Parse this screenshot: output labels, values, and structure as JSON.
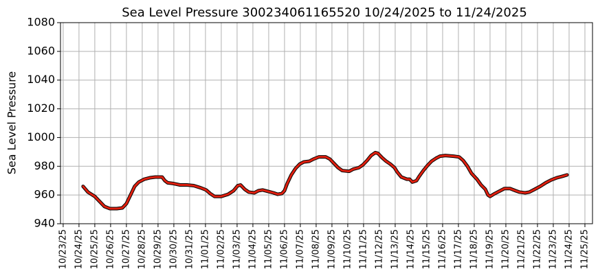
{
  "chart_data": {
    "type": "line",
    "title": "Sea Level Pressure 300234061165520  10/24/2025 to 11/24/2025",
    "y_label": "Sea Level Pressure",
    "xlim": [
      -0.17,
      33.48
    ],
    "ylim": [
      940,
      1080
    ],
    "yticks": [
      940,
      960,
      980,
      1000,
      1020,
      1040,
      1060,
      1080
    ],
    "xticks": [
      {
        "value": 0,
        "label": "10/23/25"
      },
      {
        "value": 1,
        "label": "10/24/25"
      },
      {
        "value": 2,
        "label": "10/25/25"
      },
      {
        "value": 3,
        "label": "10/26/25"
      },
      {
        "value": 4,
        "label": "10/27/25"
      },
      {
        "value": 5,
        "label": "10/28/25"
      },
      {
        "value": 6,
        "label": "10/29/25"
      },
      {
        "value": 7,
        "label": "10/30/25"
      },
      {
        "value": 8,
        "label": "10/31/25"
      },
      {
        "value": 9,
        "label": "11/01/25"
      },
      {
        "value": 10,
        "label": "11/02/25"
      },
      {
        "value": 11,
        "label": "11/03/25"
      },
      {
        "value": 12,
        "label": "11/04/25"
      },
      {
        "value": 13,
        "label": "11/05/25"
      },
      {
        "value": 14,
        "label": "11/06/25"
      },
      {
        "value": 15,
        "label": "11/07/25"
      },
      {
        "value": 16,
        "label": "11/08/25"
      },
      {
        "value": 17,
        "label": "11/09/25"
      },
      {
        "value": 18,
        "label": "11/10/25"
      },
      {
        "value": 19,
        "label": "11/11/25"
      },
      {
        "value": 20,
        "label": "11/12/25"
      },
      {
        "value": 21,
        "label": "11/13/25"
      },
      {
        "value": 22,
        "label": "11/14/25"
      },
      {
        "value": 23,
        "label": "11/15/25"
      },
      {
        "value": 24,
        "label": "11/16/25"
      },
      {
        "value": 25,
        "label": "11/17/25"
      },
      {
        "value": 26,
        "label": "11/18/25"
      },
      {
        "value": 27,
        "label": "11/19/25"
      },
      {
        "value": 28,
        "label": "11/20/25"
      },
      {
        "value": 29,
        "label": "11/21/25"
      },
      {
        "value": 30,
        "label": "11/22/25"
      },
      {
        "value": 31,
        "label": "11/23/25"
      },
      {
        "value": 32,
        "label": "11/24/25"
      },
      {
        "value": 33,
        "label": "11/25/25"
      }
    ],
    "grid": true,
    "series": [
      {
        "color": "#e02010",
        "outline": "#000000",
        "x": [
          1.26,
          1.57,
          2.0,
          2.35,
          2.61,
          2.96,
          3.39,
          3.74,
          4.0,
          4.26,
          4.52,
          4.78,
          5.13,
          5.48,
          5.83,
          6.26,
          6.43,
          6.61,
          6.96,
          7.39,
          7.83,
          8.26,
          8.7,
          9.04,
          9.3,
          9.57,
          10.0,
          10.43,
          10.78,
          11.04,
          11.22,
          11.48,
          11.74,
          12.09,
          12.35,
          12.61,
          12.96,
          13.3,
          13.57,
          13.83,
          14.0,
          14.17,
          14.43,
          14.7,
          14.96,
          15.22,
          15.57,
          15.83,
          16.17,
          16.61,
          16.87,
          17.13,
          17.39,
          17.65,
          18.09,
          18.35,
          18.7,
          18.96,
          19.22,
          19.48,
          19.74,
          19.91,
          20.17,
          20.43,
          20.7,
          20.96,
          21.13,
          21.39,
          21.74,
          21.91,
          22.09,
          22.35,
          22.52,
          22.78,
          23.04,
          23.3,
          23.57,
          23.83,
          24.17,
          24.7,
          25.04,
          25.3,
          25.57,
          25.83,
          26.17,
          26.43,
          26.7,
          26.87,
          27.0,
          27.3,
          27.65,
          27.91,
          28.26,
          28.61,
          28.87,
          29.22,
          29.48,
          29.83,
          30.17,
          30.52,
          30.87,
          31.22,
          31.57,
          31.87
        ],
        "values": [
          966,
          962,
          959,
          955,
          952,
          950.5,
          950.5,
          951,
          954,
          960,
          966,
          969,
          971,
          972,
          972.5,
          972.5,
          970,
          968.5,
          968,
          967,
          967,
          966.5,
          965,
          963.5,
          961,
          959,
          959,
          960.5,
          963,
          966.5,
          967,
          964,
          962,
          961.5,
          963,
          963.5,
          962.5,
          961.5,
          960.5,
          961,
          963,
          968,
          974,
          978.5,
          981.5,
          983,
          983.5,
          985,
          986.5,
          986.5,
          985,
          982,
          979,
          977,
          976.5,
          978,
          979,
          981,
          984,
          987.5,
          989.5,
          989,
          986,
          983.5,
          981.5,
          979,
          976,
          972.5,
          971,
          971,
          969,
          970,
          973,
          977,
          980.5,
          983.5,
          985.5,
          987,
          987.5,
          987,
          986.5,
          984,
          980,
          975,
          971,
          967,
          964,
          960,
          959,
          961,
          963,
          964.5,
          964.5,
          963,
          962,
          961.5,
          962,
          964,
          966,
          968.5,
          970.5,
          972,
          973,
          974
        ]
      }
    ]
  }
}
